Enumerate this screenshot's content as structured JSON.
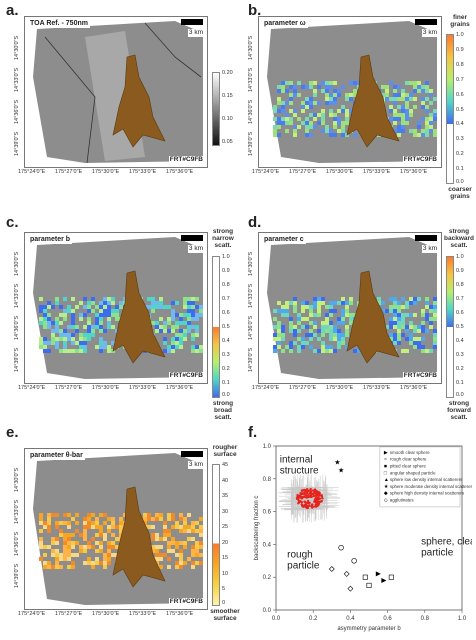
{
  "panels": {
    "a": {
      "letter": "a.",
      "title": "TOA Ref. - 750nm",
      "scale": "3 km",
      "frt": "FRT#C9FB",
      "cbar_ticks": [
        "0.20",
        "0.15",
        "0.10",
        "0.05"
      ]
    },
    "b": {
      "letter": "b.",
      "title": "parameter ω",
      "scale": "3 km",
      "frt": "FRT#C9FB",
      "cbar_ticks": [
        "1.0",
        "0.9",
        "0.8",
        "0.7",
        "0.6",
        "0.5",
        "0.4",
        "0.3",
        "0.2",
        "0.1",
        "0.0"
      ],
      "cbar_top": "finer grains",
      "cbar_bottom": "coarser grains"
    },
    "c": {
      "letter": "c.",
      "title": "parameter b",
      "scale": "3 km",
      "frt": "FRT#C9FB",
      "cbar_ticks": [
        "1.0",
        "0.9",
        "0.8",
        "0.7",
        "0.6",
        "0.5",
        "0.4",
        "0.3",
        "0.2",
        "0.1",
        "0.0"
      ],
      "cbar_top": "strong narrow scatt.",
      "cbar_bottom": "strong broad scatt."
    },
    "d": {
      "letter": "d.",
      "title": "parameter c",
      "scale": "3 km",
      "frt": "FRT#C9FB",
      "cbar_ticks": [
        "1.0",
        "0.9",
        "0.8",
        "0.7",
        "0.6",
        "0.5",
        "0.4",
        "0.3",
        "0.2",
        "0.1",
        "0.0"
      ],
      "cbar_top": "strong backward scatt.",
      "cbar_bottom": "strong forward scatt."
    },
    "e": {
      "letter": "e.",
      "title": "parameter θ-bar",
      "scale": "3 km",
      "frt": "FRT#C9FB",
      "cbar_ticks": [
        "45",
        "40",
        "35",
        "30",
        "25",
        "20",
        "15",
        "10",
        "5",
        "0"
      ],
      "cbar_top": "rougher surface",
      "cbar_bottom": "smoother surface"
    },
    "f": {
      "letter": "f."
    }
  },
  "axes": {
    "lat_ticks": [
      "14°30'0\"S",
      "14°33'0\"S",
      "14°36'0\"S",
      "14°39'0\"S"
    ],
    "lon_ticks": [
      "175°24'0\"E",
      "175°27'0\"E",
      "175°30'0\"E",
      "175°33'0\"E",
      "175°36'0\"E"
    ]
  },
  "colors": {
    "fan": "#8a5a1e",
    "terrain": "#9a9a9a",
    "pix_low": "#4a7cf0",
    "pix_mid": "#9fe07a",
    "pix_high": "#f5a623",
    "cluster": "#e8231c"
  },
  "chart_data": {
    "type": "scatter",
    "title": "",
    "xlabel": "asymmetry parameter b",
    "ylabel": "backscattering fraction c",
    "xlim": [
      0.0,
      1.0
    ],
    "ylim": [
      0.0,
      1.0
    ],
    "xticks": [
      "0.0",
      "0.2",
      "0.4",
      "0.6",
      "0.8",
      "1.0"
    ],
    "yticks": [
      "0.0",
      "0.2",
      "0.4",
      "0.6",
      "0.8",
      "1.0"
    ],
    "annotations": [
      "internal structure",
      "rough particle",
      "sphere, clear particle"
    ],
    "legend_position": "top-right",
    "legend": [
      "smooth clear sphere",
      "rough clear sphere",
      "pitted clear sphere",
      "angular shaped particle",
      "sphere low density internal scatterers",
      "sphere moderate density internal scatterers",
      "sphere high density internal scatterers",
      "agglutinates"
    ],
    "cluster": {
      "center_b": 0.18,
      "center_c": 0.68
    },
    "series": [
      {
        "name": "smooth clear sphere",
        "points": [
          [
            0.55,
            0.22
          ],
          [
            0.58,
            0.18
          ]
        ]
      },
      {
        "name": "rough clear sphere",
        "points": [
          [
            0.35,
            0.38
          ],
          [
            0.42,
            0.3
          ]
        ]
      },
      {
        "name": "angular shaped particle",
        "points": [
          [
            0.48,
            0.2
          ],
          [
            0.5,
            0.15
          ],
          [
            0.62,
            0.2
          ]
        ]
      },
      {
        "name": "sphere low density internal scatterers",
        "points": [
          [
            0.33,
            0.9
          ],
          [
            0.35,
            0.85
          ]
        ]
      },
      {
        "name": "agglutinates",
        "points": [
          [
            0.38,
            0.22
          ],
          [
            0.4,
            0.13
          ],
          [
            0.3,
            0.25
          ]
        ]
      }
    ]
  }
}
